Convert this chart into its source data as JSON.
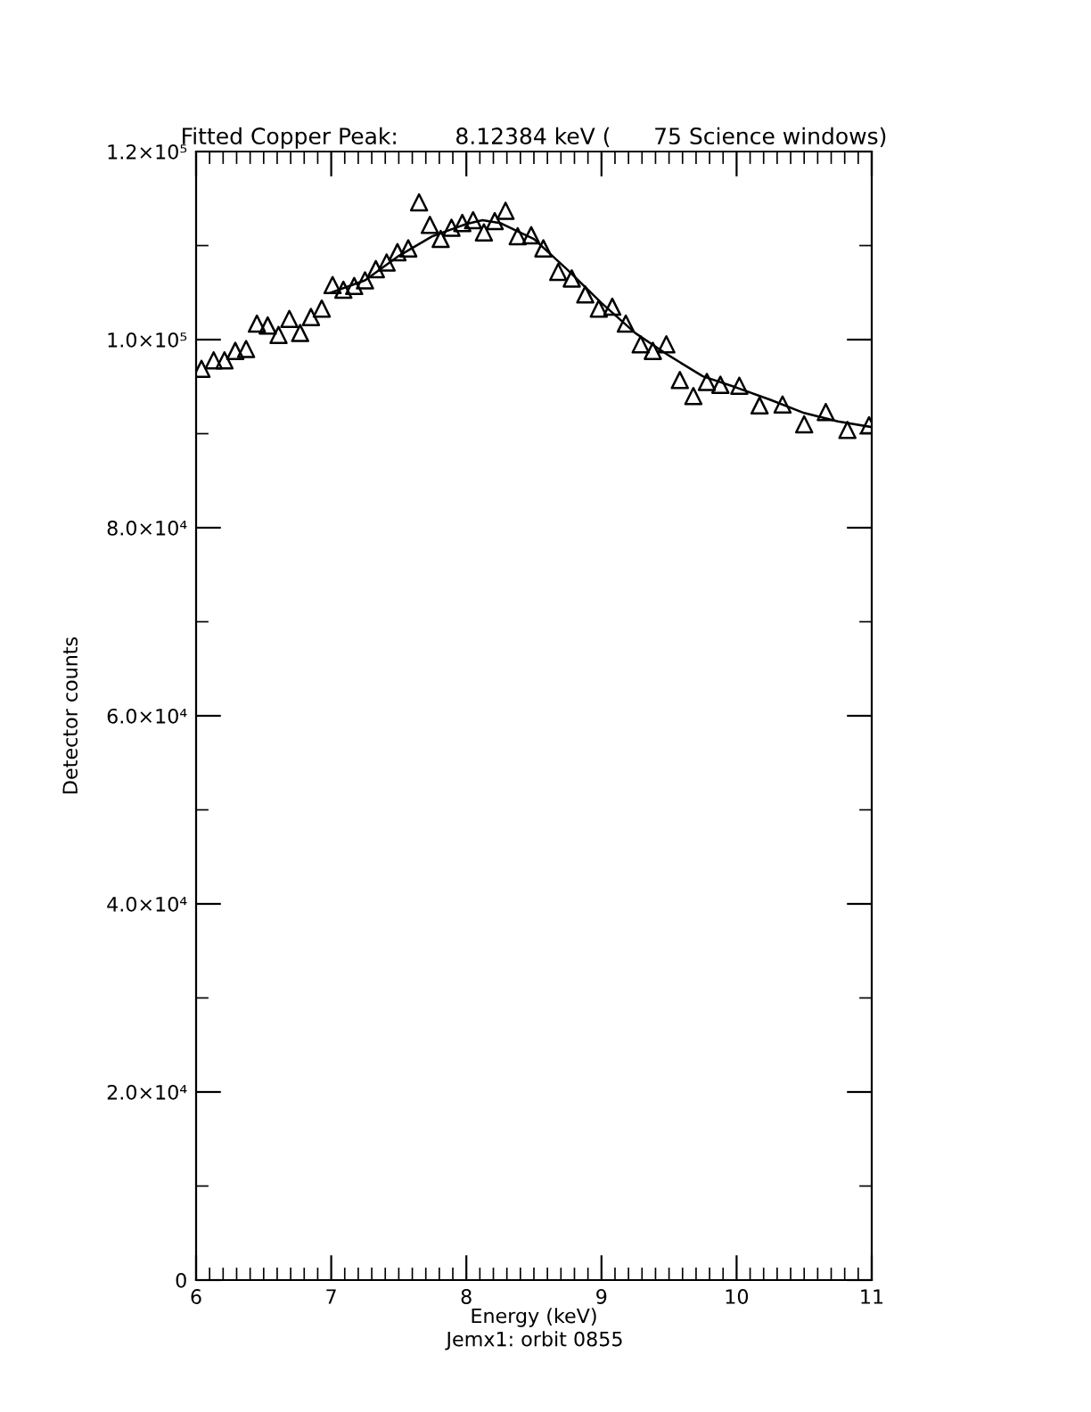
{
  "chart_data": {
    "type": "scatter",
    "title": "Fitted Copper Peak:        8.12384 keV (      75 Science windows)",
    "xlabel": "Energy (keV)",
    "ylabel": "Detector counts",
    "annotations": [
      "Jemx1: orbit 0855"
    ],
    "series": [
      {
        "color": "#000000",
        "marker": "triangle",
        "x": [
          6.04,
          6.13,
          6.21,
          6.29,
          6.37,
          6.45,
          6.53,
          6.61,
          6.69,
          6.77,
          6.85,
          6.93,
          7.01,
          7.09,
          7.17,
          7.25,
          7.33,
          7.41,
          7.49,
          7.57,
          7.65,
          7.73,
          7.81,
          7.89,
          7.97,
          8.05,
          8.13,
          8.21,
          8.29,
          8.38,
          8.48,
          8.57,
          8.68,
          8.78,
          8.88,
          8.98,
          9.08,
          9.18,
          9.29,
          9.38,
          9.48,
          9.58,
          9.68,
          9.78,
          9.88,
          10.02,
          10.17,
          10.34,
          10.5,
          10.66,
          10.82,
          10.98
        ],
        "values": [
          96900,
          97800,
          97800,
          98800,
          99000,
          101700,
          101500,
          100500,
          102200,
          100700,
          102400,
          103300,
          105800,
          105300,
          105700,
          106300,
          107500,
          108200,
          109300,
          109700,
          114600,
          112200,
          110700,
          111900,
          112400,
          112700,
          111400,
          112600,
          113700,
          111000,
          111100,
          109700,
          107200,
          106500,
          104800,
          103300,
          103500,
          101700,
          99500,
          98800,
          99500,
          95700,
          94000,
          95500,
          95200,
          95100,
          93000,
          93100,
          91000,
          92300,
          90400,
          90900
        ]
      },
      {
        "type": "line",
        "color": "#000000",
        "marker": "none",
        "line_style": "solid",
        "x": [
          7.0,
          7.25,
          7.5,
          7.75,
          8.0,
          8.12,
          8.25,
          8.5,
          8.75,
          9.0,
          9.25,
          9.5,
          9.75,
          10.0,
          10.25,
          10.5,
          10.75,
          11.0
        ],
        "values": [
          105000,
          106300,
          108900,
          111000,
          112300,
          112700,
          112400,
          110700,
          107400,
          103900,
          100700,
          98300,
          96100,
          94900,
          93600,
          92200,
          91300,
          90700
        ]
      }
    ],
    "xlim": [
      6,
      11
    ],
    "xticks": [
      6,
      7,
      8,
      9,
      10,
      11
    ],
    "ylim": [
      0,
      120000
    ],
    "yticks": [
      0,
      {
        "value": 20000,
        "label": "2.0×10⁴"
      },
      {
        "value": 40000,
        "label": "4.0×10⁴"
      },
      {
        "value": 60000,
        "label": "6.0×10⁴"
      },
      {
        "value": 80000,
        "label": "8.0×10⁴"
      },
      {
        "value": 100000,
        "label": "1.0×10⁵"
      },
      {
        "value": 120000,
        "label": "1.2×10⁵"
      }
    ],
    "grid": false,
    "legend": false
  }
}
